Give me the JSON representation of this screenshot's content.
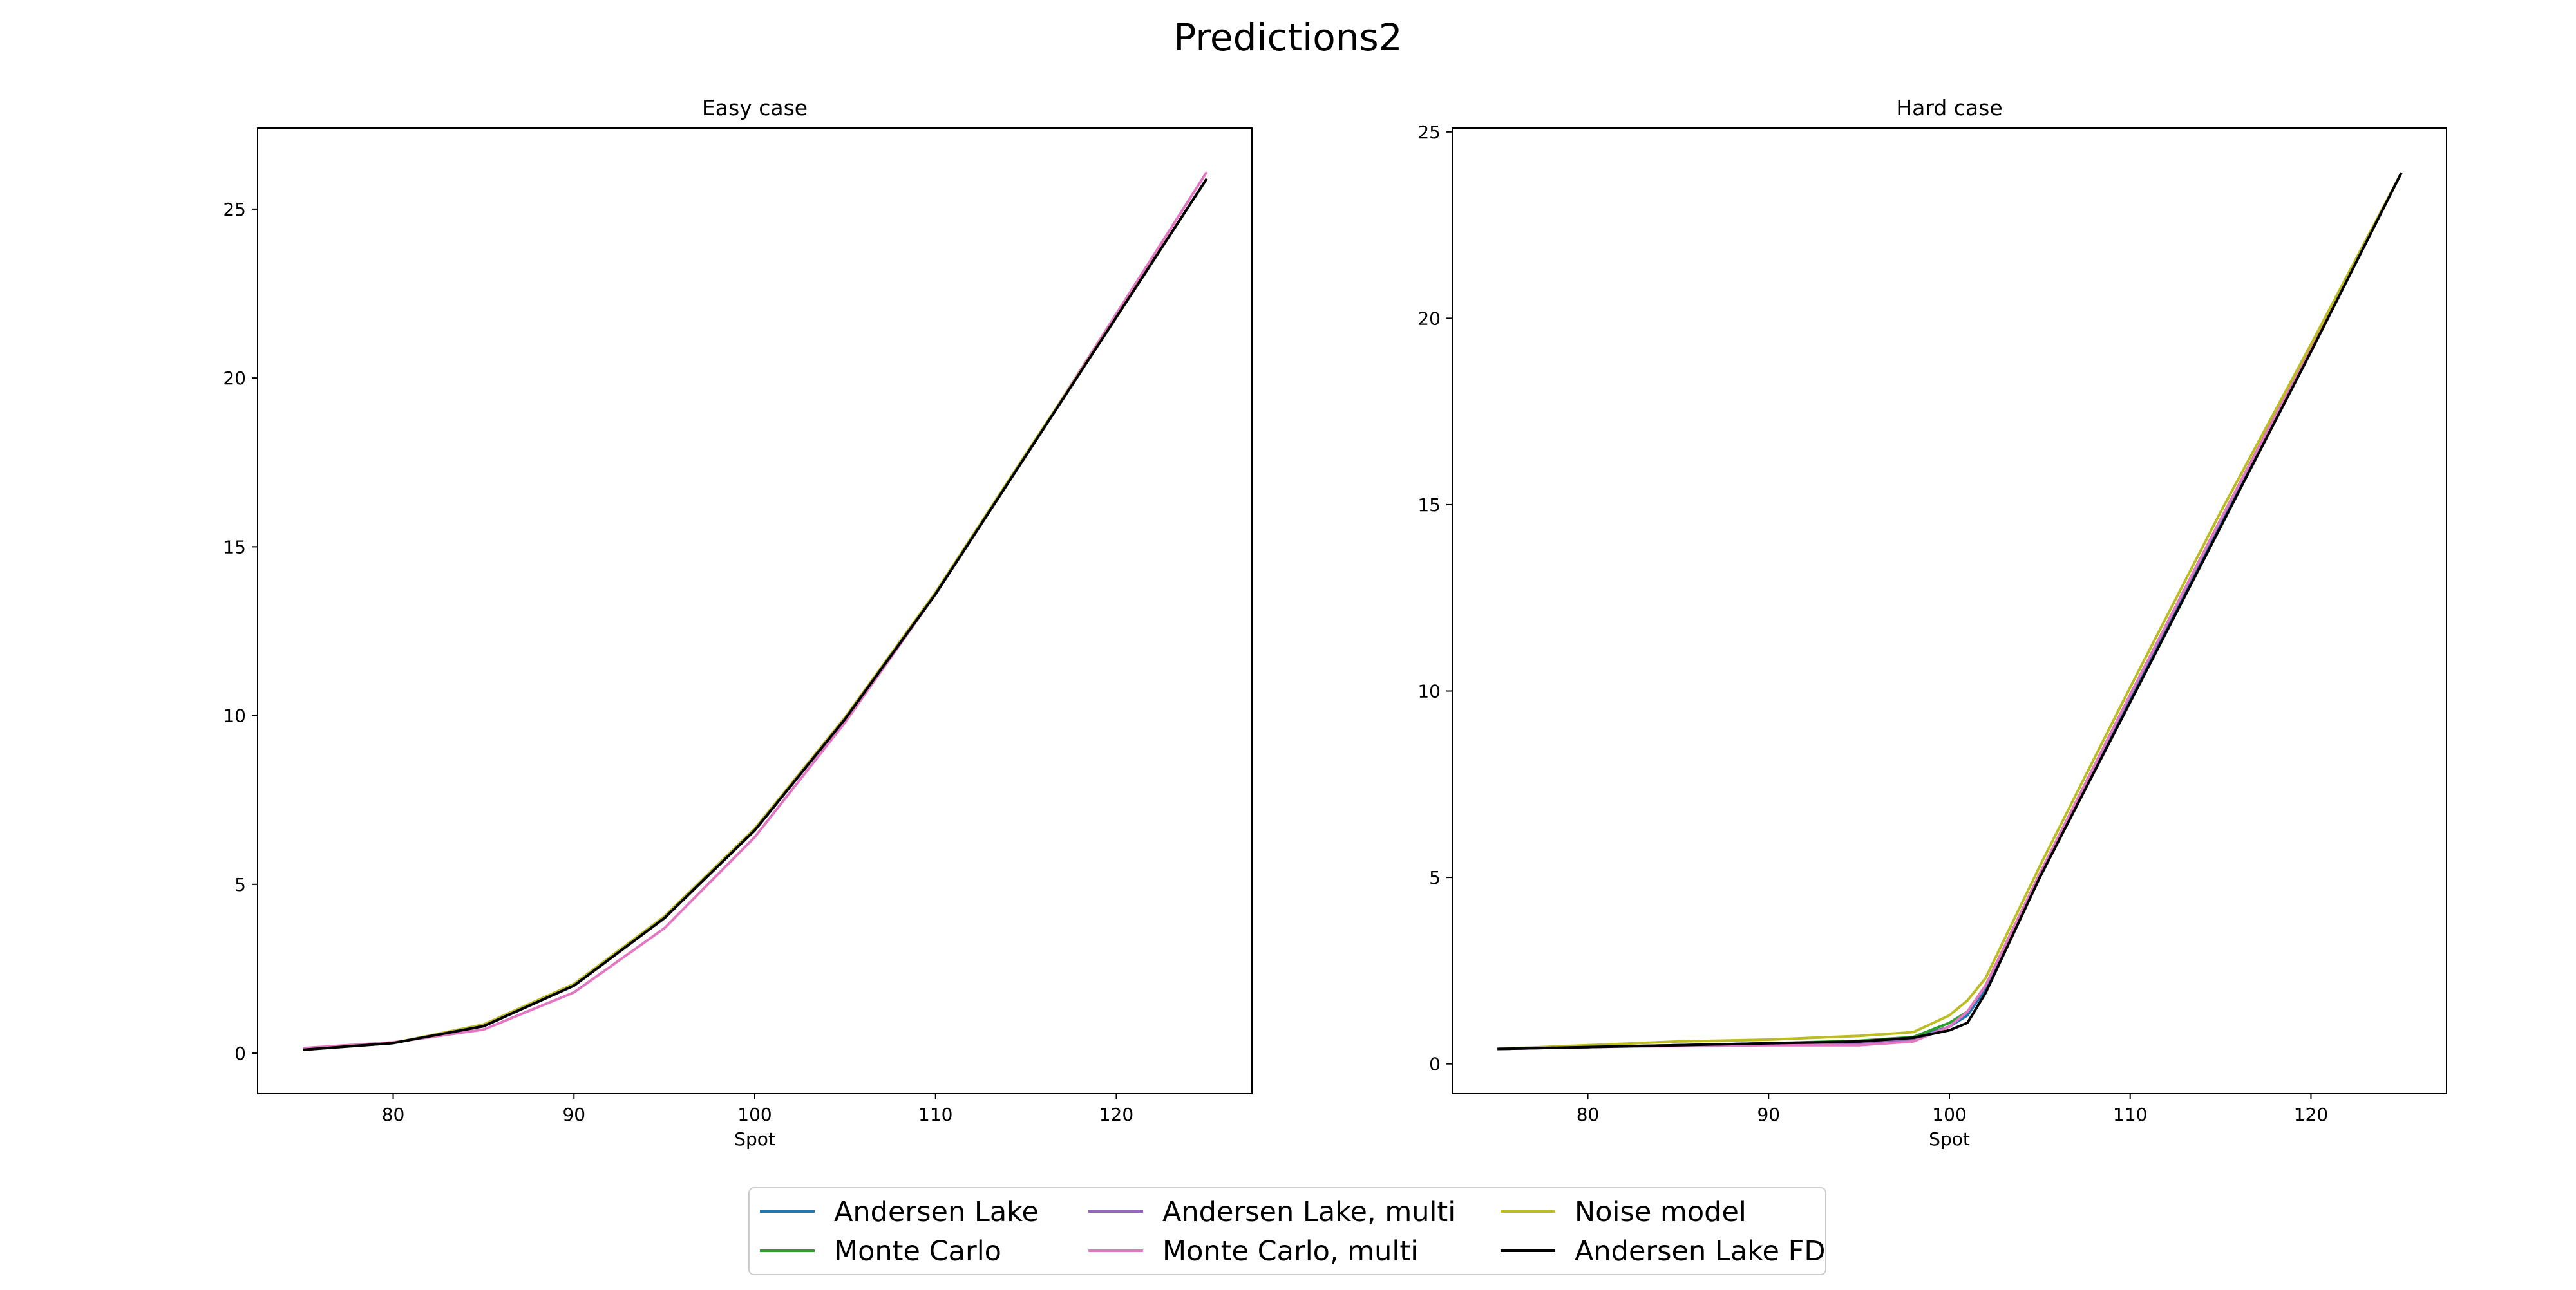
{
  "title": "Predictions2",
  "chart_data": [
    {
      "type": "line",
      "title": "Easy case",
      "x_label": "Spot",
      "x": [
        75,
        80,
        85,
        90,
        95,
        100,
        105,
        110,
        115,
        120,
        125
      ],
      "xlim": [
        72.5,
        127.5
      ],
      "xticks": [
        80,
        90,
        100,
        110,
        120
      ],
      "ylim": [
        -1.2,
        27.4
      ],
      "yticks": [
        0,
        5,
        10,
        15,
        20,
        25
      ],
      "series": [
        {
          "name": "Andersen Lake",
          "color": "#1f77b4",
          "values": [
            0.1,
            0.3,
            0.8,
            2.0,
            4.0,
            6.6,
            9.9,
            13.6,
            17.7,
            21.8,
            25.9
          ]
        },
        {
          "name": "Monte Carlo",
          "color": "#2ca02c",
          "values": [
            0.1,
            0.3,
            0.8,
            2.0,
            4.0,
            6.6,
            9.9,
            13.6,
            17.7,
            21.8,
            25.9
          ]
        },
        {
          "name": "Andersen Lake, multi",
          "color": "#9467bd",
          "values": [
            0.1,
            0.3,
            0.8,
            2.0,
            4.0,
            6.6,
            9.9,
            13.6,
            17.7,
            21.8,
            25.9
          ]
        },
        {
          "name": "Monte Carlo, multi",
          "color": "#e377c2",
          "values": [
            0.15,
            0.32,
            0.7,
            1.8,
            3.7,
            6.4,
            9.8,
            13.6,
            17.7,
            21.9,
            26.1
          ]
        },
        {
          "name": "Noise model",
          "color": "#bcbd22",
          "values": [
            0.1,
            0.3,
            0.85,
            2.05,
            4.05,
            6.65,
            9.95,
            13.65,
            17.75,
            21.8,
            25.9
          ]
        },
        {
          "name": "Andersen Lake FD",
          "color": "#000000",
          "values": [
            0.1,
            0.3,
            0.8,
            2.0,
            4.0,
            6.6,
            9.9,
            13.6,
            17.7,
            21.8,
            25.9
          ]
        }
      ]
    },
    {
      "type": "line",
      "title": "Hard case",
      "x_label": "Spot",
      "x": [
        75,
        80,
        85,
        90,
        95,
        98,
        100,
        101,
        102,
        105,
        110,
        115,
        120,
        125
      ],
      "xlim": [
        72.5,
        127.5
      ],
      "xticks": [
        80,
        90,
        100,
        110,
        120
      ],
      "ylim": [
        -0.8,
        25.1
      ],
      "yticks": [
        0,
        5,
        10,
        15,
        20,
        25
      ],
      "series": [
        {
          "name": "Andersen Lake",
          "color": "#1f77b4",
          "values": [
            0.4,
            0.45,
            0.5,
            0.55,
            0.6,
            0.7,
            1.0,
            1.3,
            2.0,
            5.0,
            9.8,
            14.5,
            19.2,
            23.9
          ]
        },
        {
          "name": "Monte Carlo",
          "color": "#2ca02c",
          "values": [
            0.4,
            0.45,
            0.5,
            0.55,
            0.62,
            0.72,
            1.1,
            1.4,
            2.1,
            5.1,
            9.9,
            14.6,
            19.2,
            23.9
          ]
        },
        {
          "name": "Andersen Lake, multi",
          "color": "#9467bd",
          "values": [
            0.4,
            0.45,
            0.5,
            0.52,
            0.55,
            0.65,
            1.0,
            1.4,
            2.1,
            5.1,
            9.9,
            14.6,
            19.2,
            23.9
          ]
        },
        {
          "name": "Monte Carlo, multi",
          "color": "#e377c2",
          "values": [
            0.4,
            0.45,
            0.48,
            0.5,
            0.5,
            0.6,
            1.0,
            1.4,
            2.1,
            5.1,
            9.9,
            14.6,
            19.2,
            23.9
          ]
        },
        {
          "name": "Noise model",
          "color": "#bcbd22",
          "values": [
            0.4,
            0.5,
            0.6,
            0.65,
            0.75,
            0.85,
            1.3,
            1.7,
            2.3,
            5.3,
            10.1,
            14.8,
            19.3,
            23.9
          ]
        },
        {
          "name": "Andersen Lake FD",
          "color": "#000000",
          "values": [
            0.4,
            0.45,
            0.5,
            0.55,
            0.6,
            0.7,
            0.9,
            1.1,
            1.9,
            5.0,
            9.7,
            14.4,
            19.1,
            23.9
          ]
        }
      ]
    }
  ]
}
